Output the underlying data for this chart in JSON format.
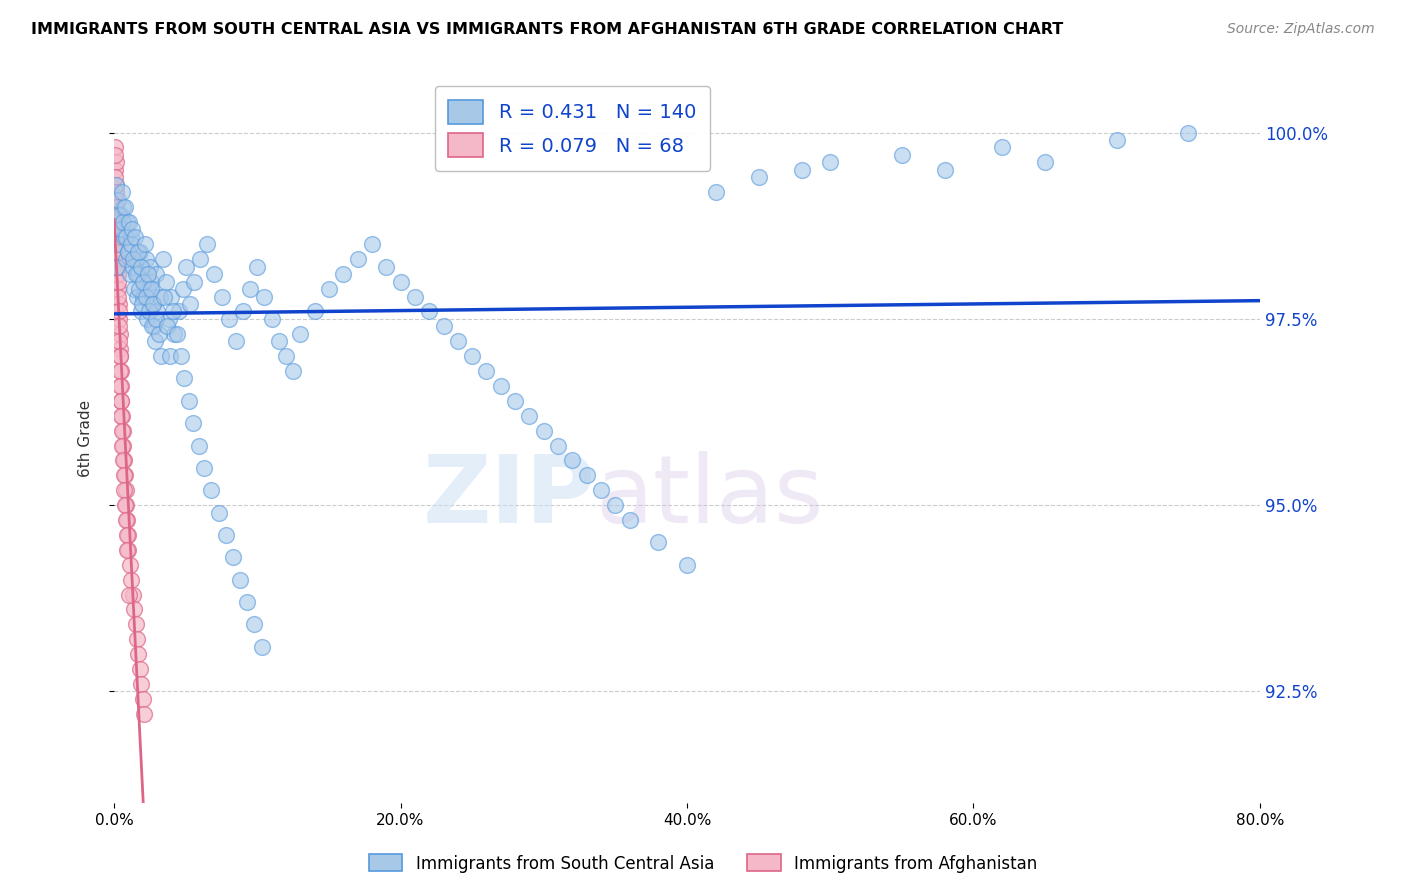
{
  "title": "IMMIGRANTS FROM SOUTH CENTRAL ASIA VS IMMIGRANTS FROM AFGHANISTAN 6TH GRADE CORRELATION CHART",
  "source": "Source: ZipAtlas.com",
  "ylabel": "6th Grade",
  "x_min": 0.0,
  "x_max": 80.0,
  "y_min": 91.0,
  "y_max": 100.8,
  "y_ticks": [
    92.5,
    95.0,
    97.5,
    100.0
  ],
  "x_tick_labels": [
    "0.0%",
    "20.0%",
    "40.0%",
    "60.0%",
    "80.0%"
  ],
  "x_ticks": [
    0,
    20,
    40,
    60,
    80
  ],
  "y_tick_labels": [
    "92.5%",
    "95.0%",
    "97.5%",
    "100.0%"
  ],
  "legend_blue_label": "Immigrants from South Central Asia",
  "legend_pink_label": "Immigrants from Afghanistan",
  "R_blue": 0.431,
  "N_blue": 140,
  "R_pink": 0.079,
  "N_pink": 68,
  "blue_color": "#a8c8e8",
  "blue_edge_color": "#5599dd",
  "blue_line_color": "#1144cc",
  "pink_color": "#f5b8c8",
  "pink_edge_color": "#dd6688",
  "pink_line_color": "#dd6688",
  "watermark_zip": "ZIP",
  "watermark_atlas": "atlas",
  "blue_scatter_x": [
    0.2,
    0.3,
    0.4,
    0.5,
    0.6,
    0.7,
    0.8,
    0.9,
    1.0,
    1.1,
    1.2,
    1.3,
    1.4,
    1.5,
    1.6,
    1.7,
    1.8,
    1.9,
    2.0,
    2.1,
    2.2,
    2.3,
    2.4,
    2.5,
    2.6,
    2.7,
    2.8,
    2.9,
    3.0,
    3.2,
    3.4,
    3.6,
    3.8,
    4.0,
    4.2,
    4.5,
    4.8,
    5.0,
    5.3,
    5.6,
    6.0,
    6.5,
    7.0,
    7.5,
    8.0,
    8.5,
    9.0,
    9.5,
    10.0,
    10.5,
    11.0,
    11.5,
    12.0,
    12.5,
    13.0,
    14.0,
    15.0,
    16.0,
    17.0,
    18.0,
    19.0,
    20.0,
    21.0,
    22.0,
    23.0,
    24.0,
    25.0,
    26.0,
    27.0,
    28.0,
    29.0,
    30.0,
    31.0,
    32.0,
    33.0,
    34.0,
    35.0,
    36.0,
    38.0,
    40.0,
    0.15,
    0.25,
    0.35,
    0.45,
    0.55,
    0.65,
    0.75,
    0.85,
    0.95,
    1.05,
    1.15,
    1.25,
    1.35,
    1.45,
    1.55,
    1.65,
    1.75,
    1.85,
    1.95,
    2.05,
    2.15,
    2.25,
    2.35,
    2.45,
    2.55,
    2.65,
    2.75,
    2.85,
    2.95,
    3.1,
    3.3,
    3.5,
    3.7,
    3.9,
    4.1,
    4.4,
    4.7,
    4.9,
    5.2,
    5.5,
    5.9,
    6.3,
    6.8,
    7.3,
    7.8,
    8.3,
    8.8,
    9.3,
    9.8,
    10.3,
    42.0,
    45.0,
    48.0,
    50.0,
    55.0,
    58.0,
    62.0,
    65.0,
    70.0,
    75.0
  ],
  "blue_scatter_y": [
    98.2,
    98.5,
    98.7,
    98.9,
    99.0,
    98.6,
    98.3,
    98.8,
    98.4,
    98.1,
    98.6,
    98.2,
    97.9,
    98.3,
    97.8,
    98.1,
    98.4,
    97.6,
    97.8,
    98.0,
    98.3,
    97.5,
    97.9,
    98.2,
    98.0,
    97.7,
    97.4,
    98.1,
    97.6,
    97.8,
    98.3,
    98.0,
    97.5,
    97.8,
    97.3,
    97.6,
    97.9,
    98.2,
    97.7,
    98.0,
    98.3,
    98.5,
    98.1,
    97.8,
    97.5,
    97.2,
    97.6,
    97.9,
    98.2,
    97.8,
    97.5,
    97.2,
    97.0,
    96.8,
    97.3,
    97.6,
    97.9,
    98.1,
    98.3,
    98.5,
    98.2,
    98.0,
    97.8,
    97.6,
    97.4,
    97.2,
    97.0,
    96.8,
    96.6,
    96.4,
    96.2,
    96.0,
    95.8,
    95.6,
    95.4,
    95.2,
    95.0,
    94.8,
    94.5,
    94.2,
    99.3,
    99.1,
    98.9,
    98.7,
    99.2,
    98.8,
    99.0,
    98.6,
    98.4,
    98.8,
    98.5,
    98.7,
    98.3,
    98.6,
    98.1,
    98.4,
    97.9,
    98.2,
    97.7,
    98.0,
    98.5,
    97.8,
    98.1,
    97.6,
    97.9,
    97.4,
    97.7,
    97.2,
    97.5,
    97.3,
    97.0,
    97.8,
    97.4,
    97.0,
    97.6,
    97.3,
    97.0,
    96.7,
    96.4,
    96.1,
    95.8,
    95.5,
    95.2,
    94.9,
    94.6,
    94.3,
    94.0,
    93.7,
    93.4,
    93.1,
    99.2,
    99.4,
    99.5,
    99.6,
    99.7,
    99.5,
    99.8,
    99.6,
    99.9,
    100.0
  ],
  "pink_scatter_x": [
    0.05,
    0.08,
    0.1,
    0.12,
    0.15,
    0.18,
    0.2,
    0.22,
    0.25,
    0.28,
    0.3,
    0.32,
    0.35,
    0.38,
    0.4,
    0.42,
    0.45,
    0.48,
    0.5,
    0.55,
    0.6,
    0.65,
    0.7,
    0.75,
    0.8,
    0.85,
    0.9,
    0.95,
    1.0,
    1.1,
    1.2,
    1.3,
    1.4,
    1.5,
    1.6,
    1.7,
    1.8,
    1.9,
    2.0,
    2.1,
    0.07,
    0.09,
    0.11,
    0.13,
    0.16,
    0.19,
    0.21,
    0.23,
    0.26,
    0.29,
    0.31,
    0.33,
    0.36,
    0.39,
    0.41,
    0.43,
    0.46,
    0.49,
    0.52,
    0.57,
    0.62,
    0.67,
    0.72,
    0.77,
    0.82,
    0.87,
    0.92,
    1.05
  ],
  "pink_scatter_y": [
    99.5,
    99.8,
    99.6,
    99.3,
    99.1,
    98.9,
    98.7,
    98.5,
    98.3,
    98.1,
    97.9,
    97.7,
    97.5,
    97.3,
    97.1,
    97.0,
    96.8,
    96.6,
    96.4,
    96.2,
    96.0,
    95.8,
    95.6,
    95.4,
    95.2,
    95.0,
    94.8,
    94.6,
    94.4,
    94.2,
    94.0,
    93.8,
    93.6,
    93.4,
    93.2,
    93.0,
    92.8,
    92.6,
    92.4,
    92.2,
    99.7,
    99.4,
    99.2,
    99.0,
    98.8,
    98.6,
    98.4,
    98.2,
    98.0,
    97.8,
    97.6,
    97.4,
    97.2,
    97.0,
    96.8,
    96.6,
    96.4,
    96.2,
    96.0,
    95.8,
    95.6,
    95.4,
    95.2,
    95.0,
    94.8,
    94.6,
    94.4,
    93.8
  ]
}
